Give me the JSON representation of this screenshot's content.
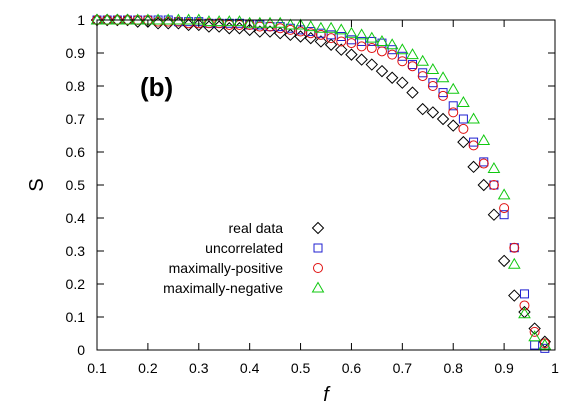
{
  "chart_data": {
    "type": "scatter",
    "panel_label": "(b)",
    "xlabel": "f",
    "ylabel": "S",
    "xlim": [
      0.1,
      1.0
    ],
    "ylim": [
      0.0,
      1.0
    ],
    "x_ticks": [
      0.1,
      0.2,
      0.3,
      0.4,
      0.5,
      0.6,
      0.7,
      0.8,
      0.9,
      1.0
    ],
    "x_tick_labels": [
      "0.1",
      "0.2",
      "0.3",
      "0.4",
      "0.5",
      "0.6",
      "0.7",
      "0.8",
      "0.9",
      "1"
    ],
    "y_ticks": [
      0.0,
      0.1,
      0.2,
      0.3,
      0.4,
      0.5,
      0.6,
      0.7,
      0.8,
      0.9,
      1.0
    ],
    "y_tick_labels": [
      "0",
      "0.1",
      "0.2",
      "0.3",
      "0.4",
      "0.5",
      "0.6",
      "0.7",
      "0.8",
      "0.9",
      "1"
    ],
    "grid": false,
    "legend_position": "center-left",
    "series": [
      {
        "name": "real data",
        "marker": "diamond",
        "color": "#000000",
        "x": [
          0.1,
          0.12,
          0.14,
          0.16,
          0.18,
          0.2,
          0.22,
          0.24,
          0.26,
          0.28,
          0.3,
          0.32,
          0.34,
          0.36,
          0.38,
          0.4,
          0.42,
          0.44,
          0.46,
          0.48,
          0.5,
          0.52,
          0.54,
          0.56,
          0.58,
          0.6,
          0.62,
          0.64,
          0.66,
          0.68,
          0.7,
          0.72,
          0.74,
          0.76,
          0.78,
          0.8,
          0.82,
          0.84,
          0.86,
          0.88,
          0.9,
          0.92,
          0.94,
          0.96,
          0.98
        ],
        "y": [
          1.0,
          1.0,
          1.0,
          1.0,
          0.995,
          0.995,
          0.99,
          0.99,
          0.99,
          0.985,
          0.985,
          0.98,
          0.98,
          0.975,
          0.975,
          0.97,
          0.965,
          0.965,
          0.96,
          0.955,
          0.95,
          0.945,
          0.935,
          0.925,
          0.91,
          0.895,
          0.88,
          0.865,
          0.845,
          0.825,
          0.81,
          0.78,
          0.73,
          0.72,
          0.7,
          0.68,
          0.63,
          0.555,
          0.5,
          0.41,
          0.27,
          0.165,
          0.115,
          0.065,
          0.025
        ]
      },
      {
        "name": "uncorrelated",
        "marker": "square",
        "color": "#1f1fd0",
        "x": [
          0.1,
          0.12,
          0.14,
          0.16,
          0.18,
          0.2,
          0.22,
          0.24,
          0.26,
          0.28,
          0.3,
          0.32,
          0.34,
          0.36,
          0.38,
          0.4,
          0.42,
          0.44,
          0.46,
          0.48,
          0.5,
          0.52,
          0.54,
          0.56,
          0.58,
          0.6,
          0.62,
          0.64,
          0.66,
          0.68,
          0.7,
          0.72,
          0.74,
          0.76,
          0.78,
          0.8,
          0.82,
          0.84,
          0.86,
          0.88,
          0.9,
          0.92,
          0.94,
          0.96,
          0.98
        ],
        "y": [
          1.0,
          1.0,
          1.0,
          1.0,
          1.0,
          1.0,
          1.0,
          1.0,
          0.995,
          0.995,
          0.995,
          0.99,
          0.99,
          0.99,
          0.99,
          0.985,
          0.985,
          0.98,
          0.98,
          0.975,
          0.97,
          0.965,
          0.96,
          0.955,
          0.95,
          0.94,
          0.935,
          0.935,
          0.93,
          0.91,
          0.89,
          0.865,
          0.84,
          0.81,
          0.78,
          0.74,
          0.7,
          0.63,
          0.57,
          0.5,
          0.41,
          0.31,
          0.17,
          0.015,
          0.005
        ]
      },
      {
        "name": "maximally-positive",
        "marker": "circle",
        "color": "#e01010",
        "x": [
          0.1,
          0.12,
          0.14,
          0.16,
          0.18,
          0.2,
          0.22,
          0.24,
          0.26,
          0.28,
          0.3,
          0.32,
          0.34,
          0.36,
          0.38,
          0.4,
          0.42,
          0.44,
          0.46,
          0.48,
          0.5,
          0.52,
          0.54,
          0.56,
          0.58,
          0.6,
          0.62,
          0.64,
          0.66,
          0.68,
          0.7,
          0.72,
          0.74,
          0.76,
          0.78,
          0.8,
          0.82,
          0.84,
          0.86,
          0.88,
          0.9,
          0.92,
          0.94,
          0.96,
          0.98
        ],
        "y": [
          1.0,
          1.0,
          1.0,
          1.0,
          1.0,
          1.0,
          0.995,
          0.995,
          0.995,
          0.99,
          0.99,
          0.99,
          0.99,
          0.985,
          0.985,
          0.985,
          0.98,
          0.98,
          0.975,
          0.97,
          0.965,
          0.96,
          0.955,
          0.945,
          0.935,
          0.93,
          0.92,
          0.915,
          0.905,
          0.895,
          0.875,
          0.86,
          0.83,
          0.8,
          0.77,
          0.72,
          0.67,
          0.62,
          0.565,
          0.5,
          0.43,
          0.31,
          0.135,
          0.055,
          0.02
        ]
      },
      {
        "name": "maximally-negative",
        "marker": "triangle",
        "color": "#10c810",
        "x": [
          0.1,
          0.12,
          0.14,
          0.16,
          0.18,
          0.2,
          0.22,
          0.24,
          0.26,
          0.28,
          0.3,
          0.32,
          0.34,
          0.36,
          0.38,
          0.4,
          0.42,
          0.44,
          0.46,
          0.48,
          0.5,
          0.52,
          0.54,
          0.56,
          0.58,
          0.6,
          0.62,
          0.64,
          0.66,
          0.68,
          0.7,
          0.72,
          0.74,
          0.76,
          0.78,
          0.8,
          0.82,
          0.84,
          0.86,
          0.88,
          0.9,
          0.92,
          0.94,
          0.96,
          0.98
        ],
        "y": [
          1.0,
          1.0,
          1.0,
          1.0,
          1.0,
          1.0,
          1.0,
          1.0,
          1.0,
          1.0,
          1.0,
          0.995,
          0.995,
          0.995,
          0.995,
          0.99,
          0.99,
          0.99,
          0.99,
          0.985,
          0.985,
          0.98,
          0.975,
          0.975,
          0.97,
          0.96,
          0.955,
          0.945,
          0.935,
          0.925,
          0.91,
          0.895,
          0.875,
          0.85,
          0.825,
          0.79,
          0.75,
          0.7,
          0.635,
          0.55,
          0.47,
          0.26,
          0.11,
          0.04,
          0.015
        ]
      }
    ]
  }
}
